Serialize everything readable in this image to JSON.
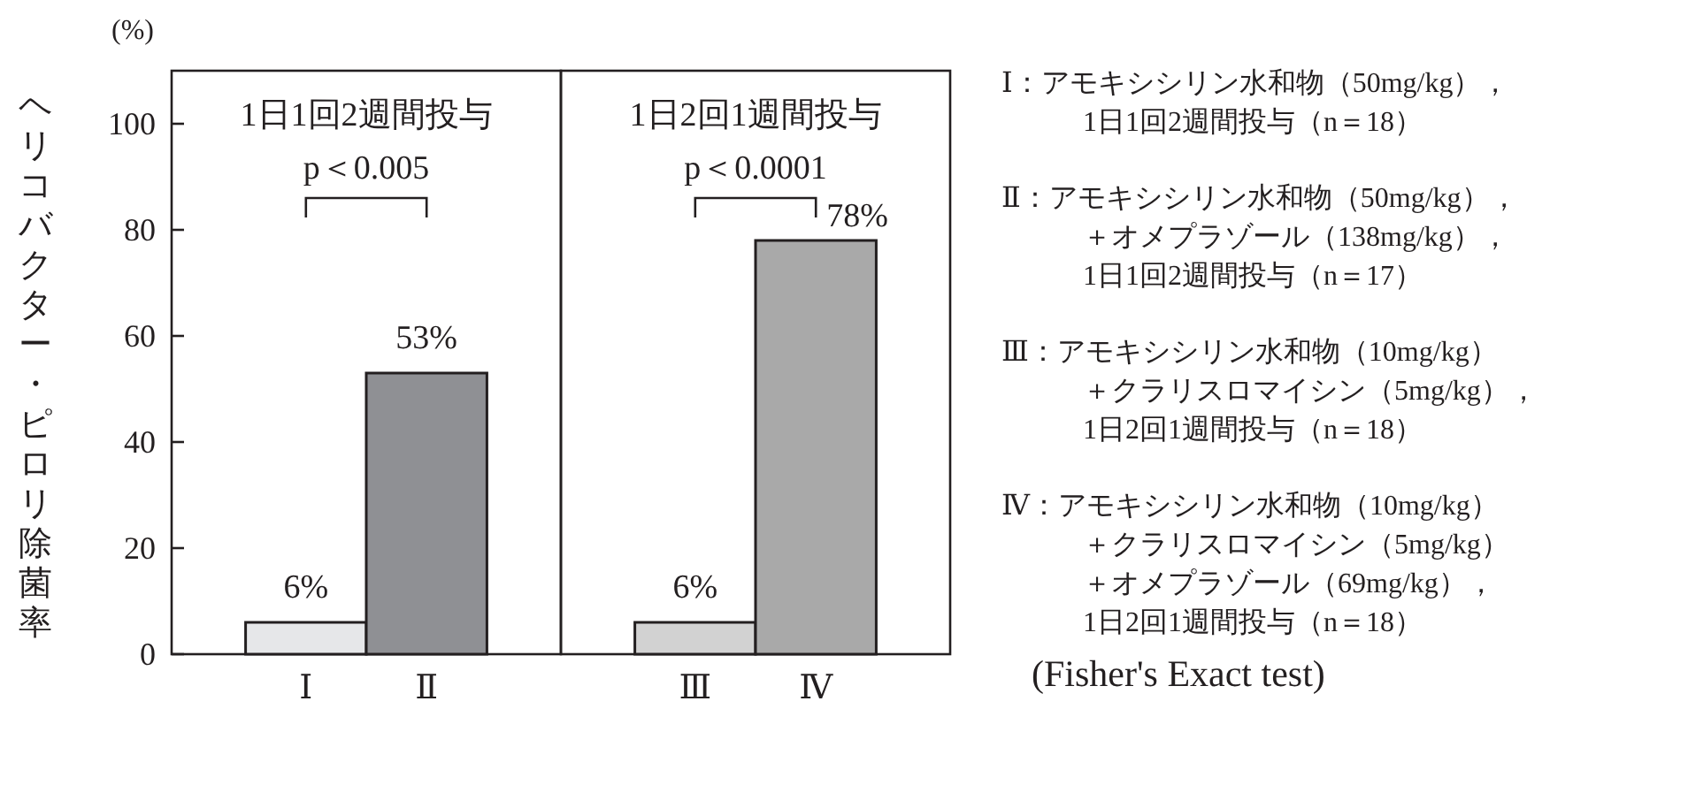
{
  "chart_data": [
    {
      "type": "bar",
      "title": "1日1回2週間投与",
      "ylabel": "ヘリコバクター・ピロリ除菌率",
      "categories": [
        "Ⅰ",
        "Ⅱ"
      ],
      "values": [
        6,
        53
      ],
      "colors": [
        "#e6e7e9",
        "#8f9094"
      ],
      "value_labels": [
        "6%",
        "53%"
      ],
      "ylim": [
        0,
        110
      ],
      "yticks": [
        0,
        20,
        40,
        60,
        80,
        100
      ],
      "annotations": [
        "(%)",
        "p＜0.005"
      ]
    },
    {
      "type": "bar",
      "title": "1日2回1週間投与",
      "categories": [
        "Ⅲ",
        "Ⅳ"
      ],
      "values": [
        6,
        78
      ],
      "colors": [
        "#d2d2d2",
        "#a9a9a9"
      ],
      "value_labels": [
        "6%",
        "78%"
      ],
      "ylim": [
        0,
        110
      ],
      "tick_labels": "x",
      "annotations": [
        "p＜0.0001"
      ]
    },
    {
      "type": "other",
      "annotations": [
        "Ⅰ：アモキシシリン水和物（50mg/kg），",
        "1日1回2週間投与（n＝18）",
        "Ⅱ：アモキシシリン水和物（50mg/kg），",
        "＋オメプラゾール（138mg/kg），",
        "1日1回2週間投与（n＝17）",
        "Ⅲ：アモキシシリン水和物（10mg/kg）",
        "＋クラリスロマイシン（5mg/kg），",
        "1日2回1週間投与（n＝18）",
        "Ⅳ：アモキシシリン水和物（10mg/kg）",
        "＋クラリスロマイシン（5mg/kg）",
        "＋オメプラゾール（69mg/kg），",
        "1日2回1週間投与（n＝18）",
        "(Fisher's Exact test)"
      ]
    }
  ]
}
